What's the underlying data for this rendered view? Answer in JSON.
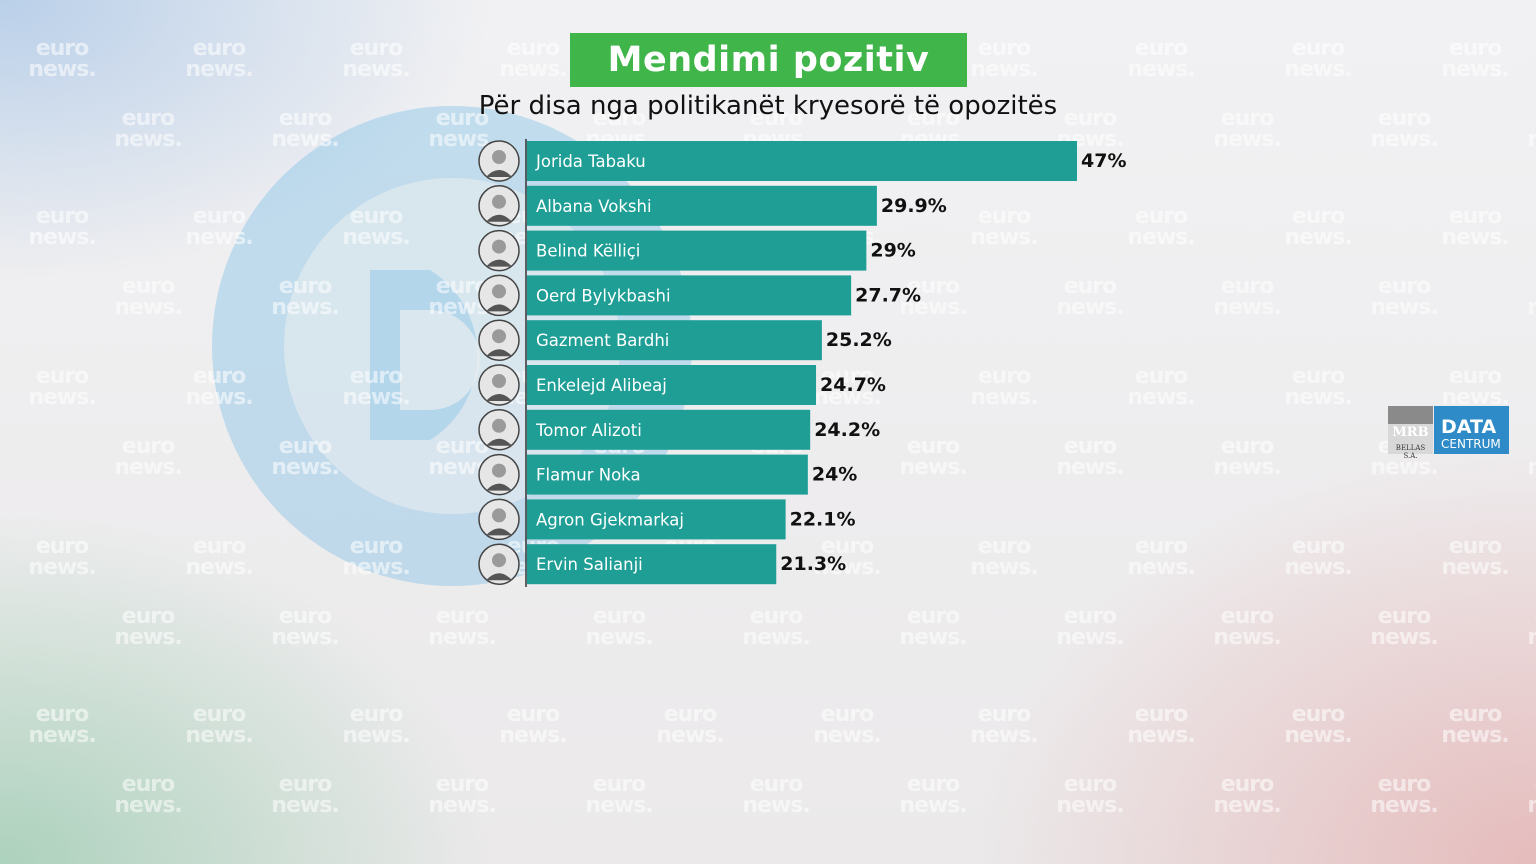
{
  "title": "Mendimi pozitiv",
  "subtitle": "Për disa nga politikanët kryesorë të opozitës",
  "watermark": {
    "line1": "euro",
    "line2": "news."
  },
  "brand": {
    "mrb": "MRB",
    "mrb_sub": "BELLAS S.A.",
    "data": "DATA",
    "centrum": "CENTRUM"
  },
  "colors": {
    "bar": "#1f9e96",
    "title_bg": "#3fb54a",
    "value_text": "#111111",
    "label_text": "#ffffff"
  },
  "chart_data": {
    "type": "bar",
    "orientation": "horizontal",
    "title": "Mendimi pozitiv",
    "subtitle": "Për disa nga politikanët kryesorë të opozitës",
    "unit": "%",
    "xlim": [
      0,
      47
    ],
    "categories": [
      "Jorida Tabaku",
      "Albana Vokshi",
      "Belind Këlliçi",
      "Oerd Bylykbashi",
      "Gazment Bardhi",
      "Enkelejd Alibeaj",
      "Tomor Alizoti",
      "Flamur Noka",
      "Agron Gjekmarkaj",
      "Ervin Salianji"
    ],
    "values": [
      47,
      29.9,
      29,
      27.7,
      25.2,
      24.7,
      24.2,
      24,
      22.1,
      21.3
    ],
    "labels": [
      "47%",
      "29.9%",
      "29%",
      "27.7%",
      "25.2%",
      "24.7%",
      "24.2%",
      "24%",
      "22.1%",
      "21.3%"
    ]
  }
}
